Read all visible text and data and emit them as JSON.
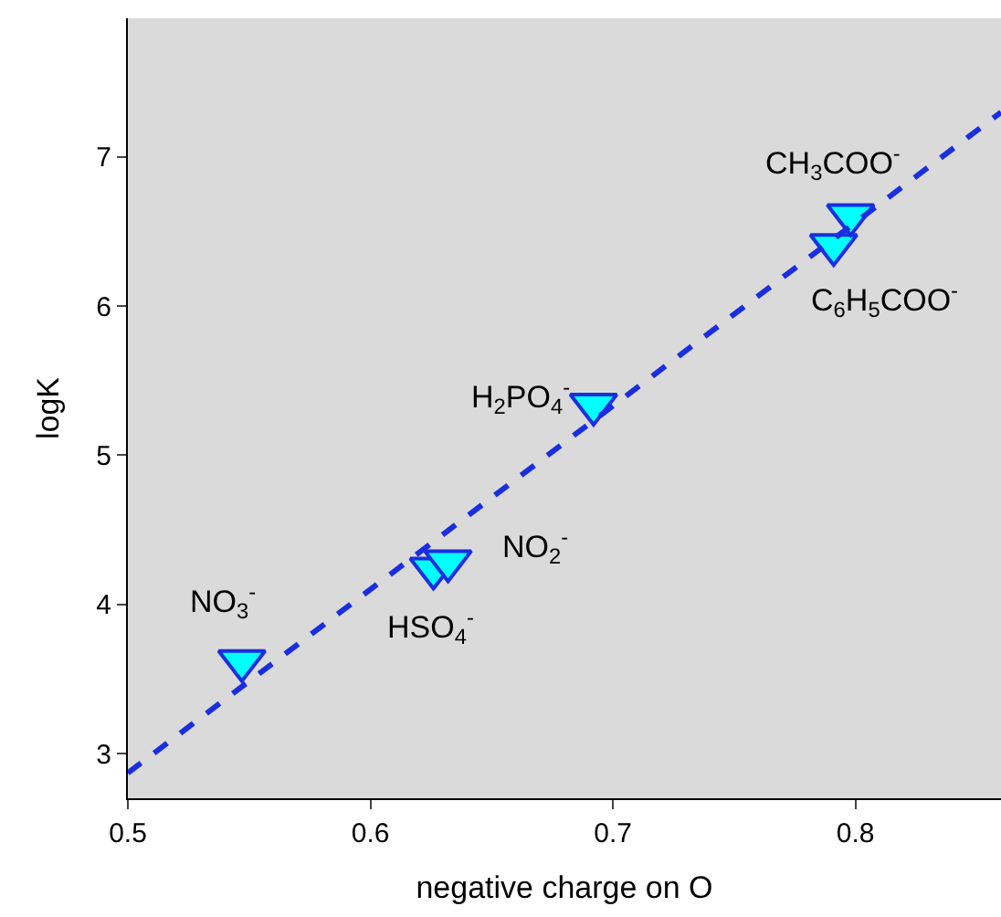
{
  "chart_data": {
    "type": "scatter",
    "xlabel": "negative charge on O",
    "ylabel": "logK",
    "xlim": [
      0.5,
      0.86
    ],
    "ylim": [
      2.7,
      7.93
    ],
    "xticks": [
      0.5,
      0.6,
      0.7,
      0.8
    ],
    "yticks": [
      3,
      4,
      5,
      6,
      7
    ],
    "grid": false,
    "legend": false,
    "series": [
      {
        "marker": "triangle",
        "color": "#00ffff",
        "x": [
          0.547,
          0.626,
          0.632,
          0.692,
          0.791,
          0.798
        ],
        "values": [
          3.62,
          4.24,
          4.29,
          5.34,
          6.41,
          6.61
        ]
      },
      {
        "type": "line",
        "line_style": "dashed",
        "marker": "none",
        "color": "#1a2ee0",
        "x": [
          0.5,
          0.86
        ],
        "values": [
          2.87,
          7.3
        ]
      }
    ],
    "annotations": [
      {
        "text": "NO$_{3}$$^{-}$",
        "x": 0.547,
        "y": 3.62
      },
      {
        "text": "HSO$_{4}$$^{-}$",
        "x": 0.626,
        "y": 4.24
      },
      {
        "text": "NO$_{2}$$^{-}$",
        "x": 0.632,
        "y": 4.29
      },
      {
        "text": "H$_{2}$PO$_{4}$$^{-}$",
        "x": 0.692,
        "y": 5.34
      },
      {
        "text": "C$_{6}$H$_{5}$COO$^{-}$",
        "x": 0.791,
        "y": 6.41
      },
      {
        "text": "CH$_{3}$COO$^{-}$",
        "x": 0.798,
        "y": 6.61
      }
    ]
  }
}
